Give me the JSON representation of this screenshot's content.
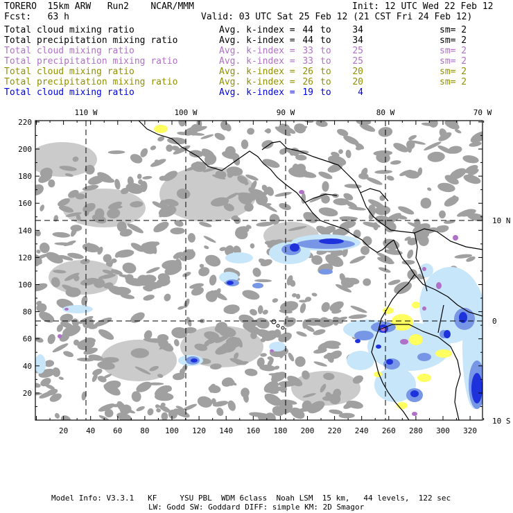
{
  "header": {
    "model": "TORERO  15km ARW   Run2    NCAR/MMM",
    "init": "Init: 12 UTC Wed 22 Feb 12",
    "fcst": "Fcst:   63 h",
    "valid": "Valid: 03 UTC Sat 25 Feb 12 (21 CST Fri 24 Feb 12)"
  },
  "legend": [
    {
      "field": "Total cloud mixing ratio",
      "avg": "Avg. k-index =",
      "k1": "44",
      "to": "to",
      "k2": "34",
      "sm": "sm= 2",
      "color": "#000000"
    },
    {
      "field": "Total precipitation mixing ratio",
      "avg": "Avg. k-index =",
      "k1": "44",
      "to": "to",
      "k2": "34",
      "sm": "sm= 2",
      "color": "#000000"
    },
    {
      "field": "Total cloud mixing ratio",
      "avg": "Avg. k-index =",
      "k1": "33",
      "to": "to",
      "k2": "25",
      "sm": "sm= 2",
      "color": "#b070c8"
    },
    {
      "field": "Total precipitation mixing ratio",
      "avg": "Avg. k-index =",
      "k1": "33",
      "to": "to",
      "k2": "25",
      "sm": "sm= 2",
      "color": "#b070c8"
    },
    {
      "field": "Total cloud mixing ratio",
      "avg": "Avg. k-index =",
      "k1": "26",
      "to": "to",
      "k2": "20",
      "sm": "sm= 2",
      "color": "#909000"
    },
    {
      "field": "Total precipitation mixing ratio",
      "avg": "Avg. k-index =",
      "k1": "26",
      "to": "to",
      "k2": "20",
      "sm": "sm= 2",
      "color": "#909000"
    },
    {
      "field": "Total cloud mixing ratio",
      "avg": "Avg. k-index =",
      "k1": "19",
      "to": "to",
      "k2": "4",
      "sm": "",
      "color": "#0000e0"
    }
  ],
  "axes": {
    "top_lon_labels": [
      "110 W",
      "100 W",
      "90 W",
      "80 W",
      "70 W"
    ],
    "right_lat_labels": [
      "10 N",
      "0",
      "10 S"
    ],
    "x_ticks": [
      "20",
      "40",
      "60",
      "80",
      "100",
      "120",
      "140",
      "160",
      "180",
      "200",
      "220",
      "240",
      "260",
      "280",
      "300",
      "320"
    ],
    "y_ticks": [
      "20",
      "40",
      "60",
      "80",
      "100",
      "120",
      "140",
      "160",
      "180",
      "200",
      "220"
    ]
  },
  "colors": {
    "gray_cloud": "#a0a0a0",
    "light_blue": "#c8e6fa",
    "mid_blue": "#7896e6",
    "dark_blue": "#1e32dc",
    "purple": "#b070c8",
    "yellow": "#ffff60",
    "coast": "#000000",
    "grid_dash": "#000000"
  },
  "footer": {
    "line1": "Model Info: V3.3.1   KF     YSU PBL  WDM 6class  Noah LSM  15 km,   44 levels,  122 sec",
    "line2": "LW: Godd SW: Goddard DIFF: simple KM: 2D Smagor"
  }
}
